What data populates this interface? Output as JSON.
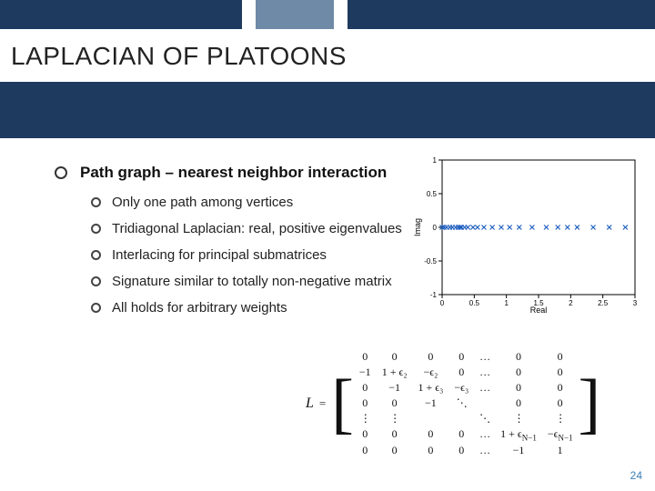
{
  "topbar": {
    "segments": [
      {
        "width_pct": 37,
        "color": "#1f3a5f"
      },
      {
        "width_pct": 2,
        "color": "#ffffff"
      },
      {
        "width_pct": 12,
        "color": "#6f8aa6"
      },
      {
        "width_pct": 2,
        "color": "#ffffff"
      },
      {
        "width_pct": 47,
        "color": "#1f3a5f"
      }
    ]
  },
  "title": {
    "text": "LAPLACIAN OF PLATOONS",
    "navy_band_top": 90,
    "navy_band_height": 62,
    "navy_color": "#1f3a5f"
  },
  "bullets": {
    "main": "Path graph – nearest neighbor interaction",
    "subs": [
      "Only one path among vertices",
      "Tridiagonal Laplacian: real, positive eigenvalues",
      "Interlacing for principal submatrices",
      "Signature similar to totally non-negative matrix",
      "All holds for arbitrary weights"
    ]
  },
  "chart": {
    "xlabel": "Real",
    "ylabel": "Imag",
    "xlim": [
      0,
      3
    ],
    "ylim": [
      -1,
      1
    ],
    "xticks": [
      0,
      0.5,
      1,
      1.5,
      2,
      2.5,
      3
    ],
    "yticks": [
      -1,
      -0.5,
      0,
      0.5,
      1
    ],
    "axis_color": "#000000",
    "tick_fontsize": 8,
    "label_fontsize": 9,
    "marker": "x",
    "marker_color": "#1f5fbf",
    "marker_size": 5,
    "points_x": [
      0,
      0.03,
      0.07,
      0.12,
      0.16,
      0.21,
      0.25,
      0.28,
      0.3,
      0.35,
      0.4,
      0.48,
      0.55,
      0.65,
      0.78,
      0.92,
      1.05,
      1.2,
      1.4,
      1.62,
      1.8,
      1.95,
      2.1,
      2.35,
      2.6,
      2.85
    ]
  },
  "matrix": {
    "lhs": "L",
    "rows": [
      [
        "0",
        "0",
        "0",
        "0",
        "…",
        "0",
        "0"
      ],
      [
        "−1",
        "1 + ϵ₂",
        "−ϵ₂",
        "0",
        "…",
        "0",
        "0"
      ],
      [
        "0",
        "−1",
        "1 + ϵ₃",
        "−ϵ₃",
        "…",
        "0",
        "0"
      ],
      [
        "0",
        "0",
        "−1",
        "⋱",
        " ",
        "0",
        "0"
      ],
      [
        "⋮",
        "⋮",
        " ",
        " ",
        "⋱",
        "⋮",
        "⋮"
      ],
      [
        "0",
        "0",
        "0",
        "0",
        "…",
        "1 + ϵ_{N−1}",
        "−ϵ_{N−1}"
      ],
      [
        "0",
        "0",
        "0",
        "0",
        "…",
        "−1",
        "1"
      ]
    ]
  },
  "page": {
    "number": "24"
  }
}
